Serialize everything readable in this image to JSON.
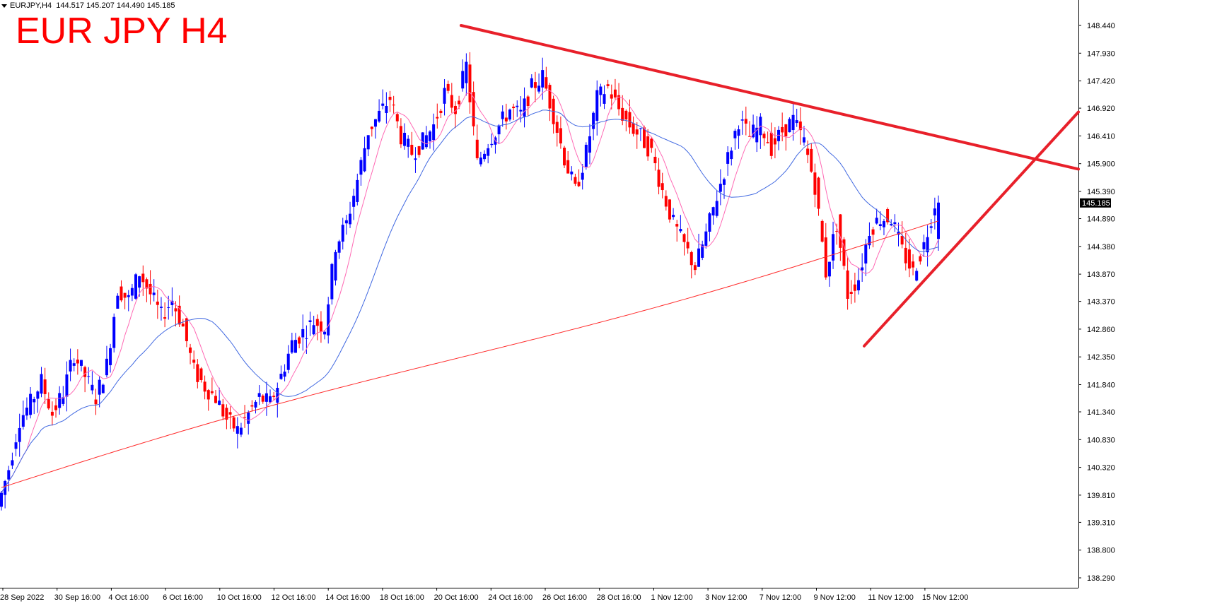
{
  "header": {
    "symbol": "EURJPY,H4",
    "ohlc": "144.517 145.207 144.490 145.185",
    "title": "EUR JPY H4"
  },
  "colors": {
    "bull": "#0000ff",
    "bear": "#ff0000",
    "ma_fast": "#ff69b4",
    "ma_mid": "#4169e1",
    "ma_slow": "#ff2a2a",
    "trendline": "#e8202a",
    "price_tag_bg": "#000000",
    "axis": "#000000"
  },
  "chart_data": {
    "type": "line",
    "title": "EUR JPY H4",
    "symbol": "EURJPY",
    "timeframe": "H4",
    "ylim": [
      138.0,
      148.7
    ],
    "y_ticks": [
      "148.440",
      "147.930",
      "147.420",
      "146.920",
      "146.410",
      "145.900",
      "145.390",
      "144.890",
      "144.380",
      "143.870",
      "143.370",
      "142.860",
      "142.350",
      "141.840",
      "141.340",
      "140.830",
      "140.320",
      "139.810",
      "139.310",
      "138.800",
      "138.290"
    ],
    "x_ticks": [
      "28 Sep 2022",
      "30 Sep 16:00",
      "4 Oct 16:00",
      "6 Oct 16:00",
      "10 Oct 16:00",
      "12 Oct 16:00",
      "14 Oct 16:00",
      "18 Oct 16:00",
      "20 Oct 16:00",
      "24 Oct 16:00",
      "26 Oct 16:00",
      "28 Oct 16:00",
      "1 Nov 12:00",
      "3 Nov 12:00",
      "7 Nov 12:00",
      "9 Nov 12:00",
      "11 Nov 12:00",
      "15 Nov 12:00"
    ],
    "current_price": "145.185",
    "price_close_path": [
      139.6,
      140.3,
      141.2,
      141.5,
      141.9,
      141.3,
      141.7,
      142.4,
      142.0,
      141.6,
      142.2,
      143.6,
      143.4,
      143.9,
      143.5,
      143.1,
      143.4,
      142.9,
      142.1,
      141.8,
      141.6,
      141.2,
      141.0,
      141.3,
      141.6,
      141.5,
      142.0,
      142.6,
      142.8,
      143.0,
      142.9,
      144.4,
      144.8,
      145.6,
      146.5,
      146.8,
      147.1,
      146.4,
      146.1,
      146.3,
      146.6,
      147.2,
      146.9,
      147.7,
      145.9,
      146.3,
      146.6,
      146.9,
      146.8,
      147.3,
      147.5,
      146.8,
      146.0,
      145.4,
      146.1,
      147.1,
      147.3,
      146.9,
      146.6,
      146.4,
      146.1,
      145.4,
      144.8,
      144.4,
      144.0,
      144.6,
      145.3,
      146.0,
      146.7,
      146.4,
      146.6,
      146.2,
      146.5,
      146.7,
      146.3,
      145.5,
      143.9,
      144.8,
      143.5,
      143.8,
      144.7,
      144.9,
      144.9,
      144.3,
      143.9,
      144.4,
      145.185
    ],
    "series": [
      {
        "name": "MA fast",
        "style": "pink line"
      },
      {
        "name": "MA mid",
        "style": "blue line"
      },
      {
        "name": "MA slow",
        "style": "red line"
      }
    ],
    "trendlines": [
      {
        "from": [
          "20 Oct 16:00",
          148.44
        ],
        "to": [
          "right edge",
          145.8
        ],
        "label": ""
      },
      {
        "from": [
          "11 Nov 12:00",
          142.55
        ],
        "to": [
          "right edge",
          146.85
        ],
        "label": ""
      }
    ],
    "grid": false,
    "legend": "none"
  }
}
